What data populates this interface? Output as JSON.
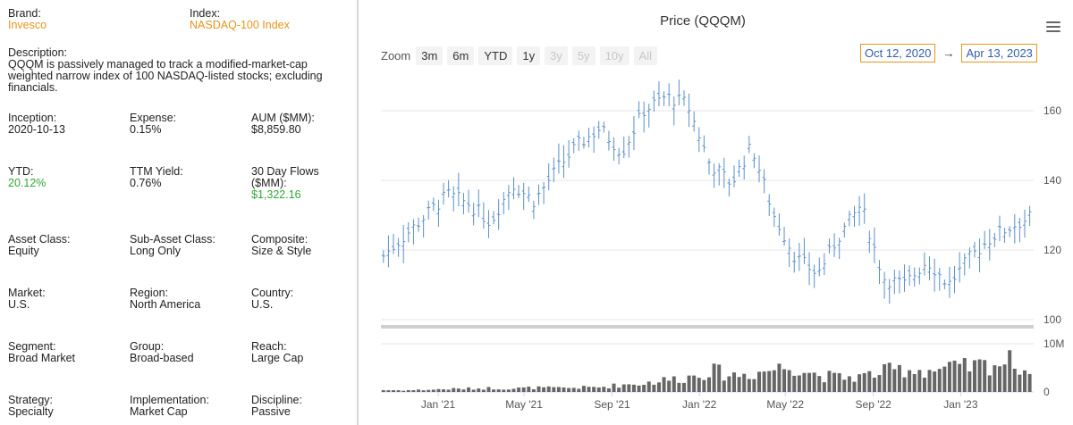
{
  "info": {
    "brand_label": "Brand:",
    "brand_value": "Invesco",
    "index_label": "Index:",
    "index_value": "NASDAQ-100 Index",
    "description_label": "Description:",
    "description": "QQQM is passively managed to track a modified-market-cap weighted narrow index of 100 NASDAQ-listed stocks; excluding financials.",
    "rows": [
      [
        {
          "label": "Inception:",
          "value": "2020-10-13"
        },
        {
          "label": "Expense:",
          "value": "0.15%"
        },
        {
          "label": "AUM ($MM):",
          "value": "$8,859.80"
        }
      ],
      [
        {
          "label": "YTD:",
          "value": "20.12%"
        },
        {
          "label": "TTM Yield:",
          "value": "0.76%"
        },
        {
          "label": "30 Day Flows ($MM):",
          "value": "$1,322.16"
        }
      ],
      [
        {
          "label": "Asset Class:",
          "value": "Equity"
        },
        {
          "label": "Sub-Asset Class:",
          "value": "Long Only"
        },
        {
          "label": "Composite:",
          "value": "Size & Style"
        }
      ],
      [
        {
          "label": "Market:",
          "value": "U.S."
        },
        {
          "label": "Region:",
          "value": "North America"
        },
        {
          "label": "Country:",
          "value": "U.S."
        }
      ],
      [
        {
          "label": "Segment:",
          "value": "Broad Market"
        },
        {
          "label": "Group:",
          "value": "Broad-based"
        },
        {
          "label": "Reach:",
          "value": "Large Cap"
        }
      ],
      [
        {
          "label": "Strategy:",
          "value": "Specialty"
        },
        {
          "label": "Implementation:",
          "value": "Market Cap"
        },
        {
          "label": "Discipline:",
          "value": "Passive"
        }
      ]
    ]
  },
  "colors": {
    "accent": "#e8941a",
    "positive": "#2ea836",
    "price_line": "#5b8fc7",
    "volume_bar": "#666666"
  },
  "toolbar": {
    "zoom_label": "Zoom",
    "buttons": [
      {
        "label": "3m",
        "enabled": true
      },
      {
        "label": "6m",
        "enabled": true
      },
      {
        "label": "YTD",
        "enabled": true
      },
      {
        "label": "1y",
        "enabled": true
      },
      {
        "label": "3y",
        "enabled": false
      },
      {
        "label": "5y",
        "enabled": false
      },
      {
        "label": "10y",
        "enabled": false
      },
      {
        "label": "All",
        "enabled": false
      }
    ],
    "from_date": "Oct 12, 2020",
    "arrow": "→",
    "to_date": "Apr 13, 2023",
    "menu_icon": "hamburger-menu-icon"
  },
  "chart_data": {
    "type": "ohlc",
    "title": "Price (QQQM)",
    "x_tick_labels": [
      "Jan '21",
      "May '21",
      "Sep '21",
      "Jan '22",
      "May '22",
      "Sep '22",
      "Jan '23"
    ],
    "x_range": [
      "2020-10-13",
      "2023-04-13"
    ],
    "y_price_ticks": [
      100,
      120,
      140,
      160
    ],
    "y_price_range": [
      100,
      170
    ],
    "y_volume_ticks": [
      "0",
      "10M"
    ],
    "y_volume_range": [
      0,
      10000000
    ],
    "grid": true,
    "price_series_monthly_approx": [
      {
        "date": "2020-10",
        "close": 118
      },
      {
        "date": "2020-11",
        "close": 124
      },
      {
        "date": "2020-12",
        "close": 130
      },
      {
        "date": "2021-01",
        "close": 136
      },
      {
        "date": "2021-02",
        "close": 133
      },
      {
        "date": "2021-03",
        "close": 128
      },
      {
        "date": "2021-04",
        "close": 139
      },
      {
        "date": "2021-05",
        "close": 134
      },
      {
        "date": "2021-06",
        "close": 143
      },
      {
        "date": "2021-07",
        "close": 150
      },
      {
        "date": "2021-08",
        "close": 155
      },
      {
        "date": "2021-09",
        "close": 148
      },
      {
        "date": "2021-10",
        "close": 160
      },
      {
        "date": "2021-11",
        "close": 164
      },
      {
        "date": "2021-12",
        "close": 162
      },
      {
        "date": "2022-01",
        "close": 145
      },
      {
        "date": "2022-02",
        "close": 139
      },
      {
        "date": "2022-03",
        "close": 150
      },
      {
        "date": "2022-04",
        "close": 130
      },
      {
        "date": "2022-05",
        "close": 118
      },
      {
        "date": "2022-06",
        "close": 113
      },
      {
        "date": "2022-07",
        "close": 124
      },
      {
        "date": "2022-08",
        "close": 133
      },
      {
        "date": "2022-09",
        "close": 112
      },
      {
        "date": "2022-10",
        "close": 110
      },
      {
        "date": "2022-11",
        "close": 117
      },
      {
        "date": "2022-12",
        "close": 110
      },
      {
        "date": "2023-01",
        "close": 118
      },
      {
        "date": "2023-02",
        "close": 124
      },
      {
        "date": "2023-03",
        "close": 127
      },
      {
        "date": "2023-04",
        "close": 130
      }
    ],
    "volume_series_monthly_approx": [
      {
        "date": "2020-10",
        "volume": 400000
      },
      {
        "date": "2020-11",
        "volume": 350000
      },
      {
        "date": "2020-12",
        "volume": 450000
      },
      {
        "date": "2021-01",
        "volume": 600000
      },
      {
        "date": "2021-02",
        "volume": 700000
      },
      {
        "date": "2021-03",
        "volume": 800000
      },
      {
        "date": "2021-04",
        "volume": 700000
      },
      {
        "date": "2021-05",
        "volume": 900000
      },
      {
        "date": "2021-06",
        "volume": 800000
      },
      {
        "date": "2021-07",
        "volume": 900000
      },
      {
        "date": "2021-08",
        "volume": 1000000
      },
      {
        "date": "2021-09",
        "volume": 1500000
      },
      {
        "date": "2021-10",
        "volume": 1800000
      },
      {
        "date": "2021-11",
        "volume": 2500000
      },
      {
        "date": "2021-12",
        "volume": 3000000
      },
      {
        "date": "2022-01",
        "volume": 4500000
      },
      {
        "date": "2022-02",
        "volume": 3500000
      },
      {
        "date": "2022-03",
        "volume": 3800000
      },
      {
        "date": "2022-04",
        "volume": 4800000
      },
      {
        "date": "2022-05",
        "volume": 5500000
      },
      {
        "date": "2022-06",
        "volume": 3500000
      },
      {
        "date": "2022-07",
        "volume": 3000000
      },
      {
        "date": "2022-08",
        "volume": 3200000
      },
      {
        "date": "2022-09",
        "volume": 4200000
      },
      {
        "date": "2022-10",
        "volume": 4800000
      },
      {
        "date": "2022-11",
        "volume": 4500000
      },
      {
        "date": "2022-12",
        "volume": 4800000
      },
      {
        "date": "2023-01",
        "volume": 5200000
      },
      {
        "date": "2023-02",
        "volume": 5800000
      },
      {
        "date": "2023-03",
        "volume": 6500000
      },
      {
        "date": "2023-04",
        "volume": 3200000
      }
    ]
  }
}
